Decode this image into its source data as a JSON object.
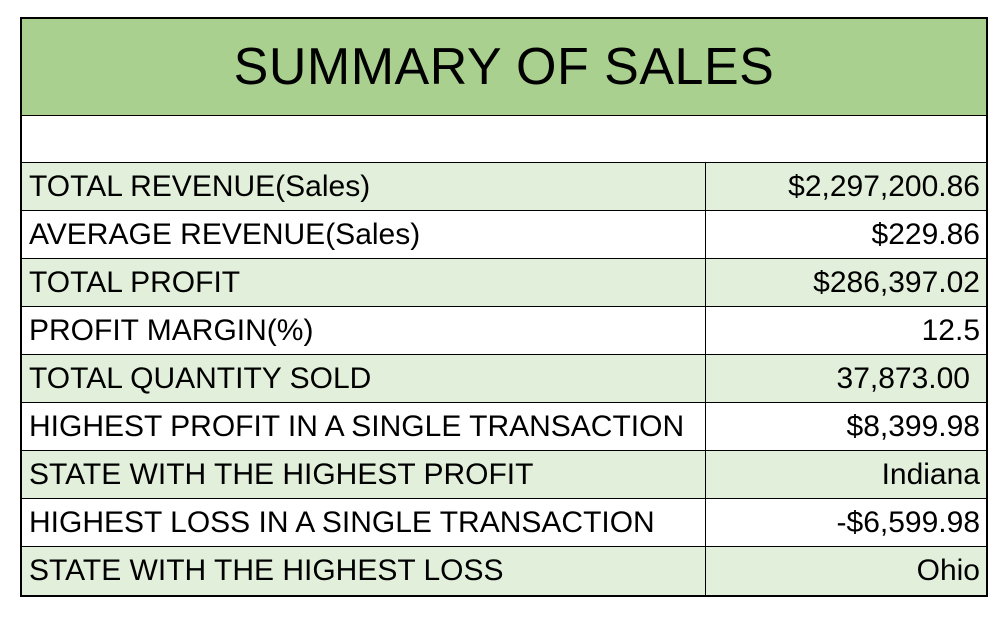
{
  "title": "SUMMARY OF SALES",
  "colors": {
    "header_fill": "#a9d08e",
    "alt_row_fill": "#e2efda",
    "border": "#000000"
  },
  "rows": [
    {
      "label": "TOTAL REVENUE(Sales)",
      "value": "$2,297,200.86"
    },
    {
      "label": "AVERAGE REVENUE(Sales)",
      "value": "$229.86"
    },
    {
      "label": "TOTAL PROFIT",
      "value": "$286,397.02"
    },
    {
      "label": "PROFIT MARGIN(%)",
      "value": "12.5"
    },
    {
      "label": "TOTAL QUANTITY SOLD",
      "value": "37,873.00"
    },
    {
      "label": "HIGHEST PROFIT IN A SINGLE TRANSACTION",
      "value": "$8,399.98"
    },
    {
      "label": "STATE WITH THE HIGHEST PROFIT",
      "value": "Indiana"
    },
    {
      "label": "HIGHEST LOSS IN A SINGLE TRANSACTION",
      "value": "-$6,599.98"
    },
    {
      "label": "STATE WITH THE HIGHEST LOSS",
      "value": "Ohio"
    }
  ]
}
